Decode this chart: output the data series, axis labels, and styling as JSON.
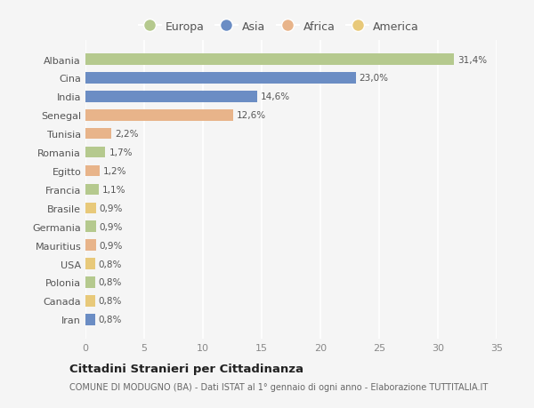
{
  "countries": [
    "Albania",
    "Cina",
    "India",
    "Senegal",
    "Tunisia",
    "Romania",
    "Egitto",
    "Francia",
    "Brasile",
    "Germania",
    "Mauritius",
    "USA",
    "Polonia",
    "Canada",
    "Iran"
  ],
  "values": [
    31.4,
    23.0,
    14.6,
    12.6,
    2.2,
    1.7,
    1.2,
    1.1,
    0.9,
    0.9,
    0.9,
    0.8,
    0.8,
    0.8,
    0.8
  ],
  "labels": [
    "31,4%",
    "23,0%",
    "14,6%",
    "12,6%",
    "2,2%",
    "1,7%",
    "1,2%",
    "1,1%",
    "0,9%",
    "0,9%",
    "0,9%",
    "0,8%",
    "0,8%",
    "0,8%",
    "0,8%"
  ],
  "colors": [
    "#b5c98e",
    "#6b8dc4",
    "#6b8dc4",
    "#e8b48a",
    "#e8b48a",
    "#b5c98e",
    "#e8b48a",
    "#b5c98e",
    "#e8c97a",
    "#b5c98e",
    "#e8b48a",
    "#e8c97a",
    "#b5c98e",
    "#e8c97a",
    "#6b8dc4"
  ],
  "legend_labels": [
    "Europa",
    "Asia",
    "Africa",
    "America"
  ],
  "legend_colors": [
    "#b5c98e",
    "#6b8dc4",
    "#e8b48a",
    "#e8c97a"
  ],
  "title": "Cittadini Stranieri per Cittadinanza",
  "subtitle": "COMUNE DI MODUGNO (BA) - Dati ISTAT al 1° gennaio di ogni anno - Elaborazione TUTTITALIA.IT",
  "xlim": [
    0,
    35
  ],
  "xticks": [
    0,
    5,
    10,
    15,
    20,
    25,
    30,
    35
  ],
  "bg_color": "#f5f5f5",
  "grid_color": "#ffffff",
  "bar_height": 0.6
}
